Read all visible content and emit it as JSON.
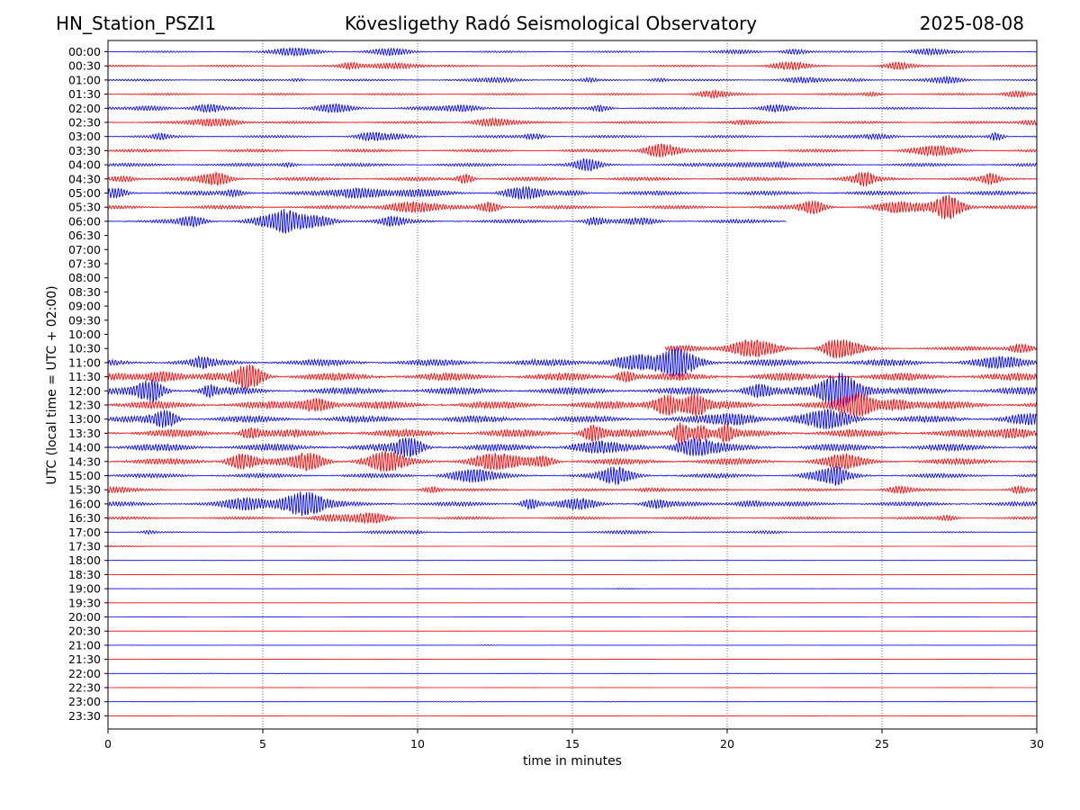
{
  "header": {
    "station": "HN_Station_PSZI1",
    "observatory": "Kövesligethy Radó Seismological Observatory",
    "date": "2025-08-08"
  },
  "chart_data": {
    "type": "line",
    "xlabel": "time in minutes",
    "ylabel": "UTC (local time = UTC + 02:00)",
    "xlim": [
      0,
      30
    ],
    "xticks": [
      0,
      5,
      10,
      15,
      20,
      25,
      30
    ],
    "vertical_gridlines_at": [
      5,
      10,
      15,
      20,
      25
    ],
    "grid": "vertical dotted lines",
    "trace_colors": [
      "#0000ff",
      "#ff0000"
    ],
    "rows": [
      {
        "label": "00:00",
        "end": 30,
        "activity": 0.4
      },
      {
        "label": "00:30",
        "end": 30,
        "activity": 0.45
      },
      {
        "label": "01:00",
        "end": 30,
        "activity": 0.45
      },
      {
        "label": "01:30",
        "end": 30,
        "activity": 0.45
      },
      {
        "label": "02:00",
        "end": 30,
        "activity": 0.5
      },
      {
        "label": "02:30",
        "end": 30,
        "activity": 0.55
      },
      {
        "label": "03:00",
        "end": 30,
        "activity": 0.6
      },
      {
        "label": "03:30",
        "end": 30,
        "activity": 0.7
      },
      {
        "label": "04:00",
        "end": 30,
        "activity": 0.75
      },
      {
        "label": "04:30",
        "end": 30,
        "activity": 0.85
      },
      {
        "label": "05:00",
        "end": 30,
        "activity": 0.95
      },
      {
        "label": "05:30",
        "end": 30,
        "activity": 0.85
      },
      {
        "label": "06:00",
        "end": 21.9,
        "activity": 0.9
      },
      {
        "label": "06:30",
        "end": 0,
        "activity": 0
      },
      {
        "label": "07:00",
        "end": 0,
        "activity": 0
      },
      {
        "label": "07:30",
        "end": 0,
        "activity": 0
      },
      {
        "label": "08:00",
        "end": 0,
        "activity": 0
      },
      {
        "label": "08:30",
        "end": 0,
        "activity": 0
      },
      {
        "label": "09:00",
        "end": 0,
        "activity": 0
      },
      {
        "label": "09:30",
        "end": 0,
        "activity": 0
      },
      {
        "label": "10:00",
        "end": 0,
        "activity": 0
      },
      {
        "label": "10:30",
        "end": 30,
        "start": 18.0,
        "activity": 0.9
      },
      {
        "label": "11:00",
        "end": 30,
        "activity": 1.5
      },
      {
        "label": "11:30",
        "end": 30,
        "activity": 1.7
      },
      {
        "label": "12:00",
        "end": 30,
        "activity": 1.6
      },
      {
        "label": "12:30",
        "end": 30,
        "activity": 1.7
      },
      {
        "label": "13:00",
        "end": 30,
        "activity": 1.5
      },
      {
        "label": "13:30",
        "end": 30,
        "activity": 1.7
      },
      {
        "label": "14:00",
        "end": 30,
        "activity": 1.6
      },
      {
        "label": "14:30",
        "end": 30,
        "activity": 1.4
      },
      {
        "label": "15:00",
        "end": 30,
        "activity": 1.0
      },
      {
        "label": "15:30",
        "end": 30,
        "activity": 0.6
      },
      {
        "label": "16:00",
        "end": 30,
        "activity": 1.0
      },
      {
        "label": "16:30",
        "end": 30,
        "activity": 0.6
      },
      {
        "label": "17:00",
        "end": 30,
        "activity": 0.3
      },
      {
        "label": "17:30",
        "end": 30,
        "activity": 0.08
      },
      {
        "label": "18:00",
        "end": 30,
        "activity": 0.05
      },
      {
        "label": "18:30",
        "end": 30,
        "activity": 0.06
      },
      {
        "label": "19:00",
        "end": 30,
        "activity": 0.06
      },
      {
        "label": "19:30",
        "end": 30,
        "activity": 0.06
      },
      {
        "label": "20:00",
        "end": 30,
        "activity": 0.06
      },
      {
        "label": "20:30",
        "end": 30,
        "activity": 0.07
      },
      {
        "label": "21:00",
        "end": 30,
        "activity": 0.05
      },
      {
        "label": "21:30",
        "end": 30,
        "activity": 0.05
      },
      {
        "label": "22:00",
        "end": 30,
        "activity": 0.05
      },
      {
        "label": "22:30",
        "end": 30,
        "activity": 0.05
      },
      {
        "label": "23:00",
        "end": 30,
        "activity": 0.05
      },
      {
        "label": "23:30",
        "end": 30,
        "activity": 0.06
      }
    ]
  }
}
